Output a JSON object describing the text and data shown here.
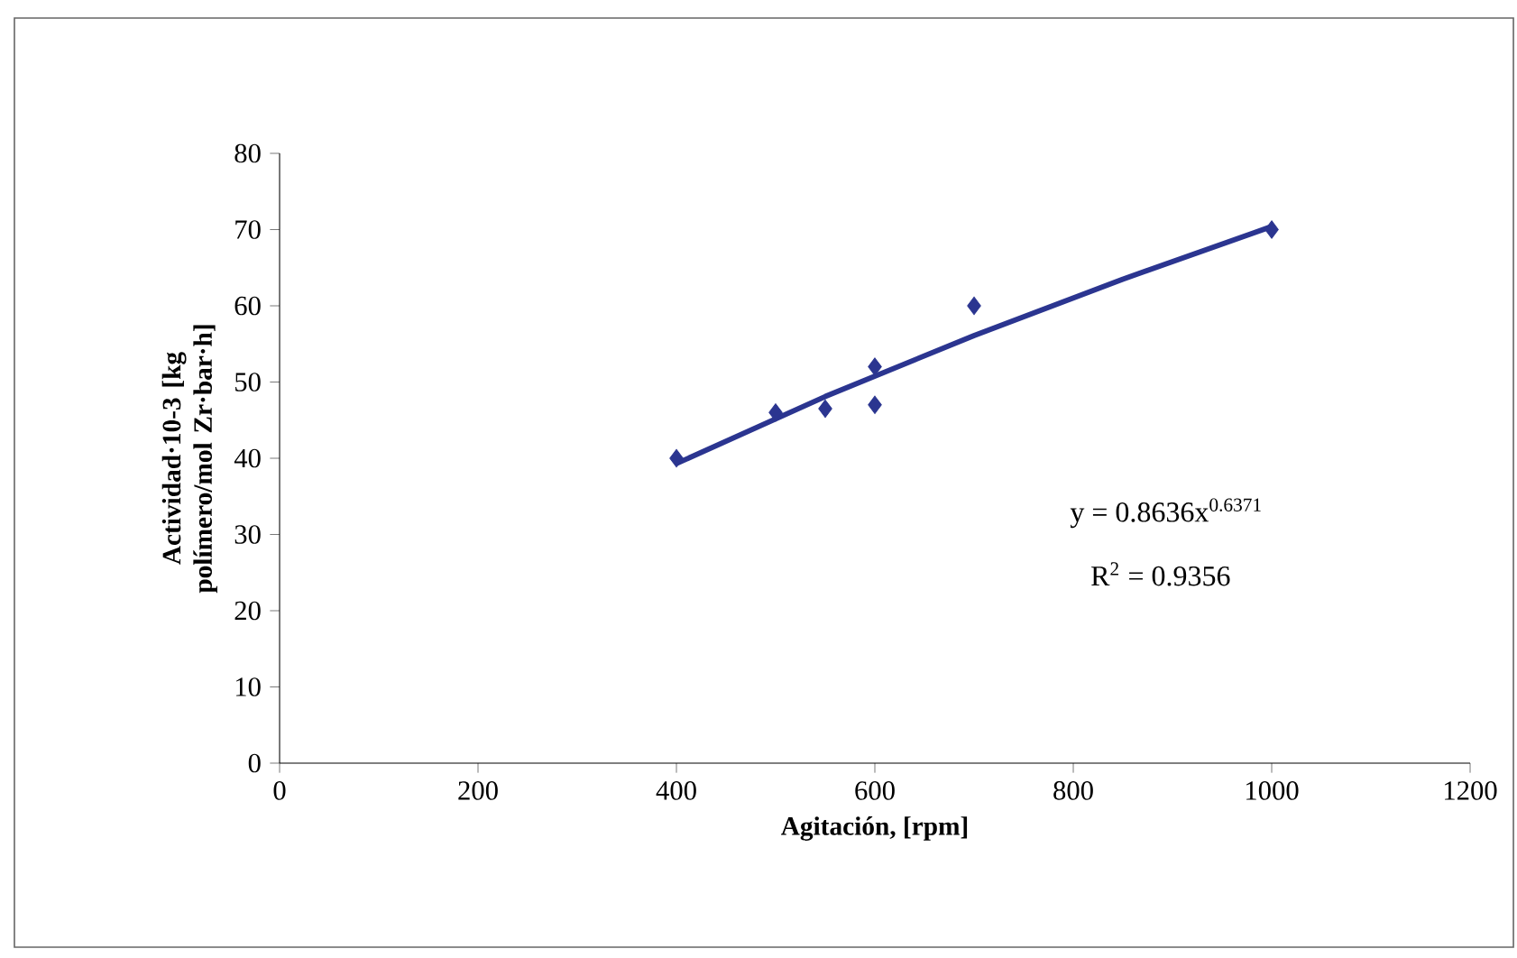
{
  "chart_data": {
    "type": "scatter",
    "xlabel": "Agitación, [rpm]",
    "ylabel": "Actividad·10-3 [kg polímero/mol Zr·bar·h]",
    "xlim": [
      0,
      1200
    ],
    "xticks": [
      0,
      200,
      400,
      600,
      800,
      1000,
      1200
    ],
    "ylim": [
      0,
      80
    ],
    "yticks": [
      0,
      10,
      20,
      30,
      40,
      50,
      60,
      70,
      80
    ],
    "series": [
      {
        "marker": "diamond",
        "color": "#2b3590",
        "x": [
          400,
          500,
          550,
          600,
          600,
          700,
          1000
        ],
        "values": [
          40,
          46,
          46.5,
          47,
          52,
          60,
          70
        ]
      },
      {
        "type": "line",
        "marker": "none",
        "line_style": "solid",
        "color": "#2b3590",
        "x": [
          400,
          550,
          700,
          850,
          1000
        ],
        "values": [
          39.3,
          48.1,
          56.1,
          63.5,
          70.4
        ]
      }
    ],
    "annotations": [
      "y = 0.8636x$^{0.6371}$",
      "R$^{2}$ = 0.9356"
    ],
    "grid": false
  }
}
